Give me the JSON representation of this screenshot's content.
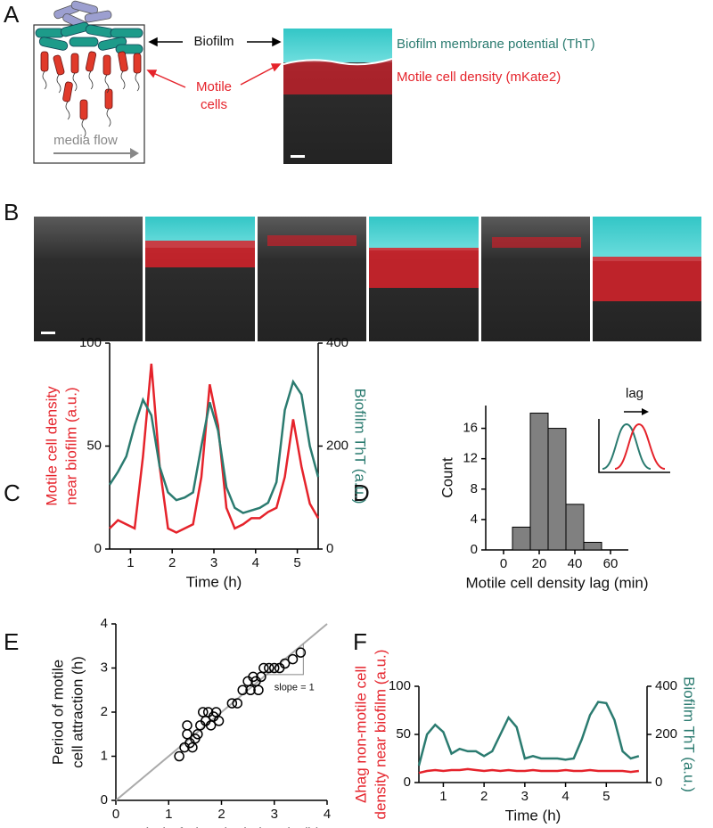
{
  "panel_letters": [
    "A",
    "B",
    "C",
    "D",
    "E",
    "F"
  ],
  "panel_a": {
    "biofilm": "Biofilm",
    "motile_cells": [
      "Motile",
      "cells"
    ],
    "media_flow": "media flow",
    "legend_tht": "Biofilm membrane potential (ThT)",
    "legend_mkate": "Motile cell density (mKate2)"
  },
  "chart_data": [
    {
      "type": "line",
      "xlabel": "Time (h)",
      "ylabel": [
        "Motile cell density",
        "near biofilm (a.u.)"
      ],
      "y2label": [
        "Biofilm ThT (a.u.)"
      ],
      "xlim": [
        0.5,
        5.5
      ],
      "xticks": [
        1,
        2,
        3,
        4,
        5
      ],
      "ylim": [
        0,
        100
      ],
      "yticks": [
        0,
        50,
        100
      ],
      "y2lim": [
        0,
        400
      ],
      "y2ticks": [
        0,
        200,
        400
      ],
      "x": [
        0.5,
        0.7,
        0.9,
        1.1,
        1.3,
        1.5,
        1.7,
        1.9,
        2.1,
        2.3,
        2.5,
        2.7,
        2.9,
        3.1,
        3.3,
        3.5,
        3.7,
        3.9,
        4.1,
        4.3,
        4.5,
        4.7,
        4.9,
        5.1,
        5.3,
        5.5
      ],
      "series": [
        {
          "name": "Motile cell density",
          "color": "#e5232b",
          "values": [
            10,
            14,
            12,
            10,
            45,
            90,
            40,
            10,
            8,
            10,
            12,
            35,
            80,
            60,
            20,
            10,
            12,
            15,
            15,
            18,
            20,
            35,
            63,
            40,
            22,
            15
          ]
        },
        {
          "name": "Biofilm ThT",
          "color": "#2b7b70",
          "axis": "y2",
          "values": [
            125,
            150,
            180,
            240,
            290,
            260,
            160,
            110,
            95,
            100,
            110,
            200,
            285,
            230,
            120,
            80,
            70,
            75,
            80,
            90,
            130,
            270,
            325,
            300,
            200,
            140
          ]
        }
      ]
    },
    {
      "type": "histogram",
      "xlabel": "Motile cell density lag (min)",
      "ylabel": [
        "Count"
      ],
      "inset_label": "lag",
      "xlim": [
        -10,
        70
      ],
      "xticks": [
        0,
        20,
        40,
        60
      ],
      "ylim": [
        0,
        19
      ],
      "yticks": [
        0,
        4,
        8,
        12,
        16
      ],
      "bins": [
        5,
        15,
        25,
        35,
        45,
        55
      ],
      "values": [
        3,
        18,
        16,
        6,
        1
      ],
      "color": "#808080"
    },
    {
      "type": "scatter",
      "xlabel": "Period of electrical signals (h)",
      "ylabel": [
        "Period of motile",
        "cell attraction (h)"
      ],
      "annotation": "slope = 1",
      "xlim": [
        0,
        4
      ],
      "xticks": [
        0,
        1,
        2,
        3,
        4
      ],
      "ylim": [
        0,
        4
      ],
      "yticks": [
        0,
        1,
        2,
        3,
        4
      ],
      "x": [
        1.2,
        1.3,
        1.35,
        1.35,
        1.4,
        1.45,
        1.5,
        1.55,
        1.6,
        1.65,
        1.7,
        1.75,
        1.8,
        1.85,
        1.9,
        1.95,
        2.2,
        2.3,
        2.4,
        2.5,
        2.55,
        2.6,
        2.65,
        2.7,
        2.75,
        2.8,
        2.9,
        3.0,
        3.1,
        3.2,
        3.35,
        3.5
      ],
      "values": [
        1.0,
        1.2,
        1.5,
        1.7,
        1.3,
        1.2,
        1.4,
        1.5,
        1.7,
        2.0,
        1.8,
        2.0,
        1.7,
        1.9,
        2.0,
        1.8,
        2.2,
        2.2,
        2.5,
        2.7,
        2.5,
        2.8,
        2.7,
        2.5,
        2.8,
        3.0,
        3.0,
        3.0,
        3.0,
        3.1,
        3.2,
        3.35
      ]
    },
    {
      "type": "line",
      "xlabel": "Time (h)",
      "ylabel": [
        "Δhag non-motile cell",
        "density near biofilm (a.u.)"
      ],
      "y2label": [
        "Biofilm ThT (a.u.)"
      ],
      "xlim": [
        0.4,
        6
      ],
      "xticks": [
        1,
        2,
        3,
        4,
        5
      ],
      "ylim": [
        0,
        100
      ],
      "yticks": [
        0,
        50,
        100
      ],
      "y2lim": [
        0,
        400
      ],
      "y2ticks": [
        0,
        200,
        400
      ],
      "x": [
        0.4,
        0.6,
        0.8,
        1.0,
        1.2,
        1.4,
        1.6,
        1.8,
        2.0,
        2.2,
        2.4,
        2.6,
        2.8,
        3.0,
        3.2,
        3.4,
        3.6,
        3.8,
        4.0,
        4.2,
        4.4,
        4.6,
        4.8,
        5.0,
        5.2,
        5.4,
        5.6,
        5.8
      ],
      "series": [
        {
          "name": "Δhag cell density",
          "color": "#e5232b",
          "values": [
            10,
            12,
            13,
            12,
            13,
            13,
            14,
            13,
            12,
            13,
            12,
            13,
            12,
            12,
            13,
            12,
            12,
            12,
            13,
            12,
            12,
            13,
            12,
            12,
            12,
            12,
            11,
            12
          ]
        },
        {
          "name": "Biofilm ThT",
          "color": "#2b7b70",
          "axis": "y2",
          "values": [
            70,
            200,
            240,
            210,
            120,
            140,
            130,
            130,
            110,
            130,
            200,
            270,
            230,
            100,
            110,
            100,
            100,
            100,
            95,
            100,
            180,
            280,
            335,
            330,
            260,
            130,
            100,
            110
          ]
        }
      ]
    }
  ]
}
